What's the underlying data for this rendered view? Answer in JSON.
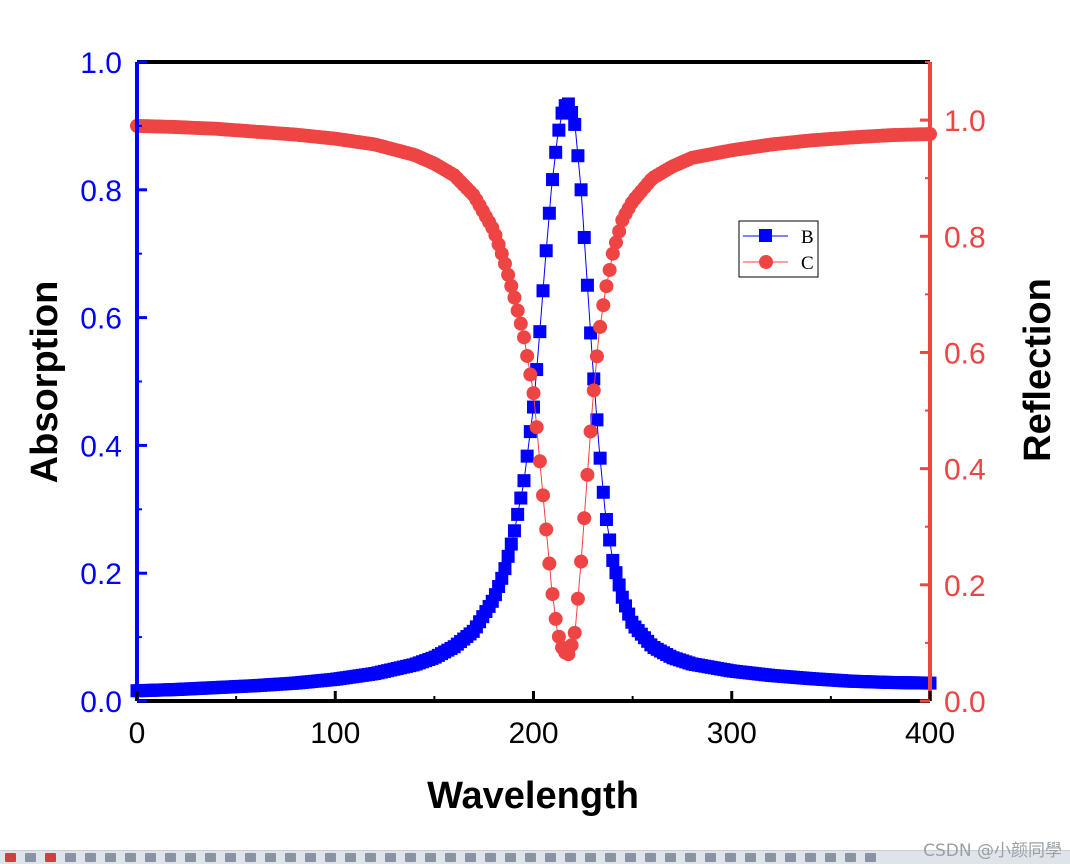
{
  "chart_data": {
    "type": "scatter",
    "x_axis": {
      "label": "Wavelength",
      "lim": [
        0,
        400
      ],
      "ticks": [
        0,
        100,
        200,
        300,
        400
      ]
    },
    "y_axis_left": {
      "label": "Absorption",
      "lim": [
        0,
        1.0
      ],
      "ticks": [
        "0.0",
        "0.2",
        "0.4",
        "0.6",
        "0.8",
        "1.0"
      ],
      "color": "#0000ff"
    },
    "y_axis_right": {
      "label": "Reflection",
      "lim": [
        0,
        1.1
      ],
      "ticks": [
        "0.0",
        "0.2",
        "0.4",
        "0.6",
        "0.8",
        "1.0"
      ],
      "color": "#ef4444"
    },
    "legend": {
      "placement": "upper-right-inside"
    },
    "series": [
      {
        "name": "B",
        "axis": "left",
        "marker": "square",
        "color": "#0000ff",
        "x": [
          0,
          20,
          40,
          60,
          80,
          100,
          120,
          140,
          150,
          160,
          170,
          180,
          185,
          190,
          195,
          200,
          203,
          206,
          209,
          212,
          215,
          218,
          221,
          224,
          227,
          230,
          233,
          236,
          240,
          245,
          250,
          260,
          270,
          280,
          300,
          320,
          340,
          360,
          380,
          400
        ],
        "values": [
          0.016,
          0.018,
          0.021,
          0.024,
          0.028,
          0.034,
          0.043,
          0.057,
          0.068,
          0.085,
          0.11,
          0.16,
          0.2,
          0.26,
          0.34,
          0.46,
          0.57,
          0.69,
          0.8,
          0.88,
          0.93,
          0.935,
          0.9,
          0.8,
          0.66,
          0.52,
          0.4,
          0.3,
          0.22,
          0.16,
          0.12,
          0.085,
          0.068,
          0.058,
          0.047,
          0.04,
          0.035,
          0.031,
          0.029,
          0.028
        ]
      },
      {
        "name": "C",
        "axis": "right",
        "marker": "circle",
        "color": "#ef4444",
        "x": [
          0,
          20,
          40,
          60,
          80,
          100,
          120,
          140,
          150,
          160,
          170,
          180,
          185,
          190,
          195,
          200,
          203,
          206,
          209,
          212,
          215,
          218,
          221,
          224,
          227,
          230,
          233,
          236,
          240,
          245,
          250,
          260,
          270,
          280,
          300,
          320,
          340,
          360,
          380,
          400
        ],
        "values": [
          0.99,
          0.988,
          0.985,
          0.98,
          0.975,
          0.968,
          0.958,
          0.94,
          0.925,
          0.905,
          0.87,
          0.81,
          0.76,
          0.7,
          0.63,
          0.53,
          0.42,
          0.31,
          0.2,
          0.12,
          0.085,
          0.08,
          0.12,
          0.24,
          0.38,
          0.52,
          0.63,
          0.7,
          0.77,
          0.83,
          0.86,
          0.9,
          0.92,
          0.935,
          0.948,
          0.958,
          0.965,
          0.97,
          0.974,
          0.976
        ]
      }
    ]
  },
  "watermark": "CSDN @小颜同學"
}
